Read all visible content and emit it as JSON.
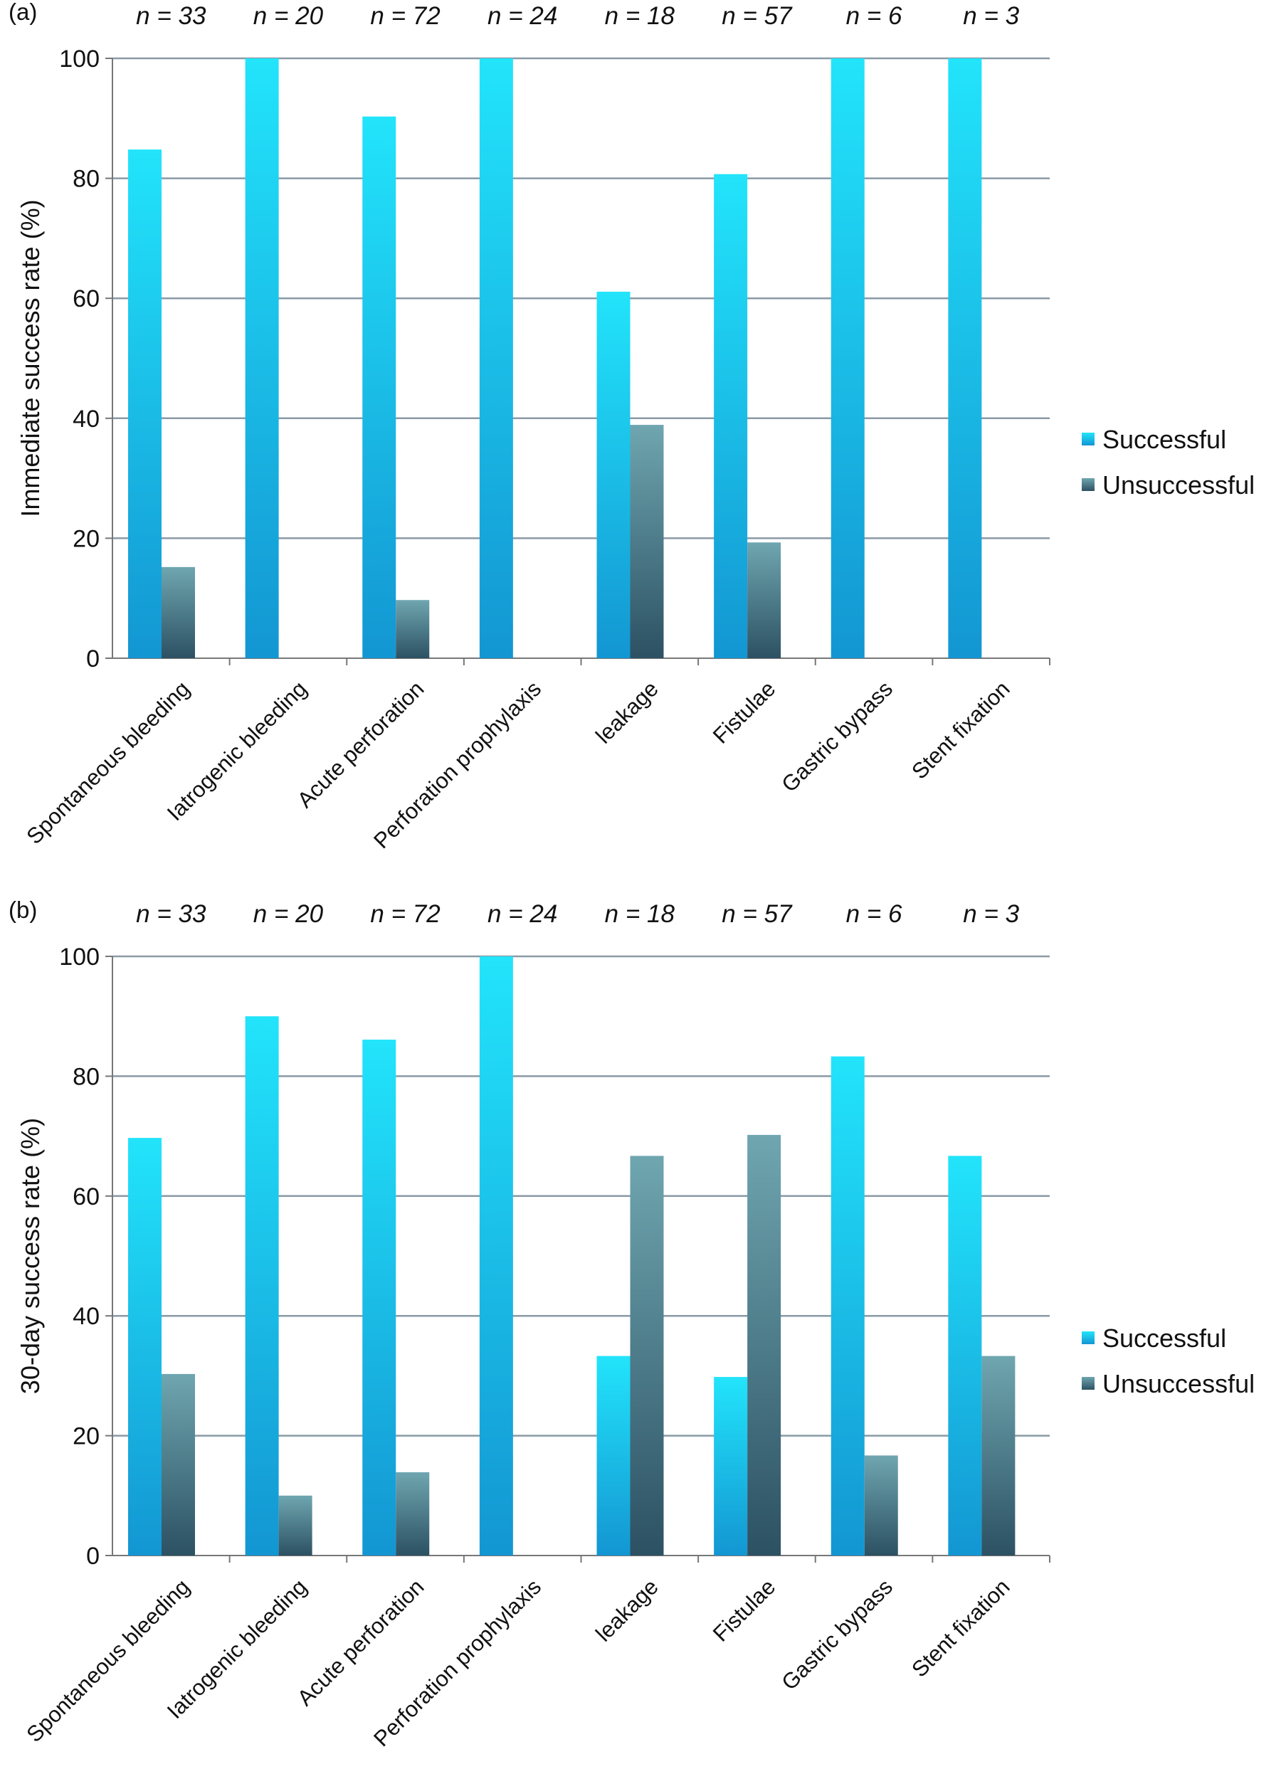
{
  "chart_data": [
    {
      "panel_label": "(a)",
      "type": "bar",
      "categories": [
        "Spontaneous bleeding",
        "Iatrogenic bleeding",
        "Acute perforation",
        "Perforation prophylaxis",
        "leakage",
        "Fistulae",
        "Gastric bypass",
        "Stent fixation"
      ],
      "n_labels": [
        "n = 33",
        "n = 20",
        "n = 72",
        "n = 24",
        "n = 18",
        "n = 57",
        "n = 6",
        "n = 3"
      ],
      "series": [
        {
          "name": "Successful",
          "values": [
            84.8,
            100,
            90.3,
            100,
            61.1,
            80.7,
            100,
            100
          ]
        },
        {
          "name": "Unsuccessful",
          "values": [
            15.2,
            0,
            9.7,
            0,
            38.9,
            19.3,
            0,
            0
          ]
        }
      ],
      "ylabel": "Immediate success rate (%)",
      "xlabel": "",
      "ylim": [
        0,
        100
      ],
      "yticks": [
        "0",
        "20",
        "40",
        "60",
        "80",
        "100"
      ],
      "grid": true,
      "legend": "right"
    },
    {
      "panel_label": "(b)",
      "type": "bar",
      "categories": [
        "Spontaneous bleeding",
        "Iatrogenic bleeding",
        "Acute perforation",
        "Perforation prophylaxis",
        "leakage",
        "Fistulae",
        "Gastric bypass",
        "Stent fixation"
      ],
      "n_labels": [
        "n = 33",
        "n = 20",
        "n = 72",
        "n = 24",
        "n = 18",
        "n = 57",
        "n = 6",
        "n = 3"
      ],
      "series": [
        {
          "name": "Successful",
          "values": [
            69.7,
            90,
            86.1,
            100,
            33.3,
            29.8,
            83.3,
            66.7
          ]
        },
        {
          "name": "Unsuccessful",
          "values": [
            30.3,
            10,
            13.9,
            0,
            66.7,
            70.2,
            16.7,
            33.3
          ]
        }
      ],
      "ylabel": "30-day success rate (%)",
      "xlabel": "",
      "ylim": [
        0,
        100
      ],
      "yticks": [
        "0",
        "20",
        "40",
        "60",
        "80",
        "100"
      ],
      "grid": true,
      "legend": "right"
    }
  ],
  "colors": {
    "successful_top": "#22e4fb",
    "successful_bottom": "#1396d2",
    "unsuccessful_top": "#6fa6b0",
    "unsuccessful_bottom": "#2c5163",
    "grid": "#8a9aa6",
    "axis": "#777777"
  }
}
